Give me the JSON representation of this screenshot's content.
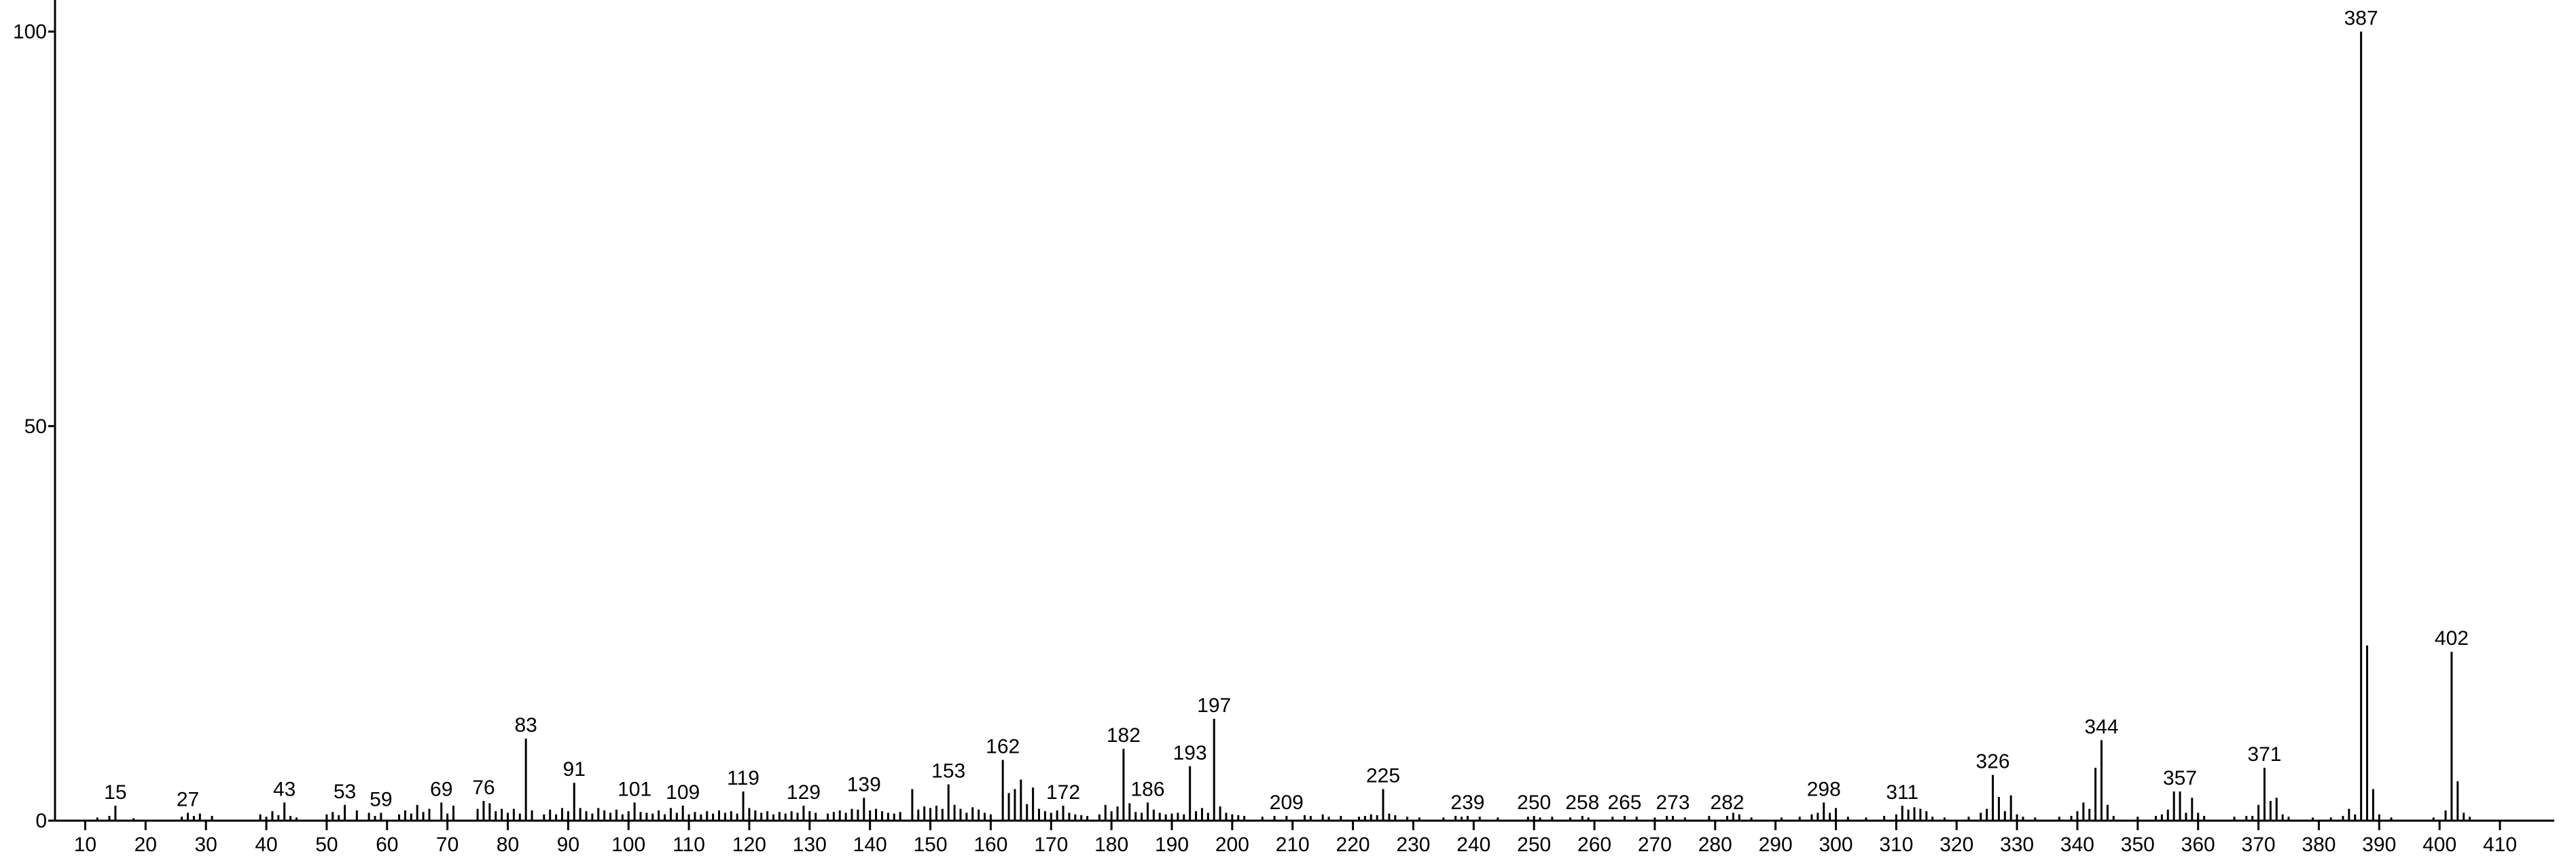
{
  "chart_data": {
    "type": "stem",
    "xlim": [
      5,
      419
    ],
    "ylim": [
      0,
      104
    ],
    "xticks": [
      10,
      20,
      30,
      40,
      50,
      60,
      70,
      80,
      90,
      100,
      110,
      120,
      130,
      140,
      150,
      160,
      170,
      180,
      190,
      200,
      210,
      220,
      230,
      240,
      250,
      260,
      270,
      280,
      290,
      300,
      310,
      320,
      330,
      340,
      350,
      360,
      370,
      380,
      390,
      400,
      410
    ],
    "yticks": [
      0,
      50,
      100
    ],
    "color": "#000000",
    "points": [
      {
        "x": 12,
        "y": 0.4
      },
      {
        "x": 14,
        "y": 0.6
      },
      {
        "x": 15,
        "y": 1.9,
        "labeled": true
      },
      {
        "x": 18,
        "y": 0.3
      },
      {
        "x": 26,
        "y": 0.5
      },
      {
        "x": 27,
        "y": 1.0,
        "labeled": true
      },
      {
        "x": 28,
        "y": 0.6
      },
      {
        "x": 29,
        "y": 0.9
      },
      {
        "x": 31,
        "y": 0.6
      },
      {
        "x": 39,
        "y": 0.8
      },
      {
        "x": 40,
        "y": 0.5
      },
      {
        "x": 41,
        "y": 1.2
      },
      {
        "x": 42,
        "y": 0.7
      },
      {
        "x": 43,
        "y": 2.3,
        "labeled": true
      },
      {
        "x": 44,
        "y": 0.6
      },
      {
        "x": 45,
        "y": 0.4
      },
      {
        "x": 50,
        "y": 0.8
      },
      {
        "x": 51,
        "y": 1.1
      },
      {
        "x": 52,
        "y": 0.7
      },
      {
        "x": 53,
        "y": 2.0,
        "labeled": true
      },
      {
        "x": 55,
        "y": 1.3
      },
      {
        "x": 57,
        "y": 1.0
      },
      {
        "x": 58,
        "y": 0.6
      },
      {
        "x": 59,
        "y": 1.0,
        "labeled": true
      },
      {
        "x": 62,
        "y": 0.8
      },
      {
        "x": 63,
        "y": 1.3
      },
      {
        "x": 64,
        "y": 0.9
      },
      {
        "x": 65,
        "y": 2.0
      },
      {
        "x": 66,
        "y": 1.1
      },
      {
        "x": 67,
        "y": 1.5
      },
      {
        "x": 69,
        "y": 2.3,
        "labeled": true
      },
      {
        "x": 70,
        "y": 0.9
      },
      {
        "x": 71,
        "y": 1.9
      },
      {
        "x": 75,
        "y": 1.5
      },
      {
        "x": 76,
        "y": 2.5,
        "labeled": true
      },
      {
        "x": 77,
        "y": 2.2
      },
      {
        "x": 78,
        "y": 1.2
      },
      {
        "x": 79,
        "y": 1.5
      },
      {
        "x": 80,
        "y": 1.0
      },
      {
        "x": 81,
        "y": 1.5
      },
      {
        "x": 82,
        "y": 0.9
      },
      {
        "x": 83,
        "y": 10.4,
        "labeled": true
      },
      {
        "x": 84,
        "y": 1.3
      },
      {
        "x": 86,
        "y": 0.8
      },
      {
        "x": 87,
        "y": 1.4
      },
      {
        "x": 88,
        "y": 0.8
      },
      {
        "x": 89,
        "y": 1.6
      },
      {
        "x": 90,
        "y": 1.2
      },
      {
        "x": 91,
        "y": 4.8,
        "labeled": true
      },
      {
        "x": 92,
        "y": 1.6
      },
      {
        "x": 93,
        "y": 1.2
      },
      {
        "x": 94,
        "y": 0.9
      },
      {
        "x": 95,
        "y": 1.6
      },
      {
        "x": 96,
        "y": 1.3
      },
      {
        "x": 97,
        "y": 1.0
      },
      {
        "x": 98,
        "y": 1.4
      },
      {
        "x": 99,
        "y": 0.8
      },
      {
        "x": 100,
        "y": 1.2
      },
      {
        "x": 101,
        "y": 2.3,
        "labeled": true
      },
      {
        "x": 102,
        "y": 1.1
      },
      {
        "x": 103,
        "y": 1.0
      },
      {
        "x": 104,
        "y": 0.9
      },
      {
        "x": 105,
        "y": 1.3
      },
      {
        "x": 106,
        "y": 0.8
      },
      {
        "x": 107,
        "y": 1.6
      },
      {
        "x": 108,
        "y": 1.0
      },
      {
        "x": 109,
        "y": 1.9,
        "labeled": true
      },
      {
        "x": 110,
        "y": 0.8
      },
      {
        "x": 111,
        "y": 1.1
      },
      {
        "x": 112,
        "y": 0.8
      },
      {
        "x": 113,
        "y": 1.2
      },
      {
        "x": 114,
        "y": 0.9
      },
      {
        "x": 115,
        "y": 1.3
      },
      {
        "x": 116,
        "y": 1.0
      },
      {
        "x": 117,
        "y": 1.2
      },
      {
        "x": 118,
        "y": 0.9
      },
      {
        "x": 119,
        "y": 3.7,
        "labeled": true
      },
      {
        "x": 120,
        "y": 1.6
      },
      {
        "x": 121,
        "y": 1.3
      },
      {
        "x": 122,
        "y": 1.0
      },
      {
        "x": 123,
        "y": 1.2
      },
      {
        "x": 124,
        "y": 0.8
      },
      {
        "x": 125,
        "y": 1.1
      },
      {
        "x": 126,
        "y": 0.9
      },
      {
        "x": 127,
        "y": 1.2
      },
      {
        "x": 128,
        "y": 1.0
      },
      {
        "x": 129,
        "y": 1.9,
        "labeled": true
      },
      {
        "x": 130,
        "y": 1.2
      },
      {
        "x": 131,
        "y": 1.0
      },
      {
        "x": 133,
        "y": 0.9
      },
      {
        "x": 134,
        "y": 1.1
      },
      {
        "x": 135,
        "y": 1.3
      },
      {
        "x": 136,
        "y": 1.0
      },
      {
        "x": 137,
        "y": 1.5
      },
      {
        "x": 138,
        "y": 1.4
      },
      {
        "x": 139,
        "y": 2.9,
        "labeled": true
      },
      {
        "x": 140,
        "y": 1.3
      },
      {
        "x": 141,
        "y": 1.5
      },
      {
        "x": 142,
        "y": 1.2
      },
      {
        "x": 143,
        "y": 1.0
      },
      {
        "x": 144,
        "y": 0.9
      },
      {
        "x": 145,
        "y": 1.1
      },
      {
        "x": 147,
        "y": 4.0
      },
      {
        "x": 148,
        "y": 1.4
      },
      {
        "x": 149,
        "y": 1.8
      },
      {
        "x": 150,
        "y": 1.6
      },
      {
        "x": 151,
        "y": 1.9
      },
      {
        "x": 152,
        "y": 1.5
      },
      {
        "x": 153,
        "y": 4.6,
        "labeled": true
      },
      {
        "x": 154,
        "y": 2.0
      },
      {
        "x": 155,
        "y": 1.5
      },
      {
        "x": 156,
        "y": 1.0
      },
      {
        "x": 157,
        "y": 1.7
      },
      {
        "x": 158,
        "y": 1.4
      },
      {
        "x": 159,
        "y": 1.0
      },
      {
        "x": 160,
        "y": 0.8
      },
      {
        "x": 162,
        "y": 7.7,
        "labeled": true
      },
      {
        "x": 163,
        "y": 3.5
      },
      {
        "x": 164,
        "y": 4.0
      },
      {
        "x": 165,
        "y": 5.2
      },
      {
        "x": 166,
        "y": 2.1
      },
      {
        "x": 167,
        "y": 4.2
      },
      {
        "x": 168,
        "y": 1.5
      },
      {
        "x": 169,
        "y": 1.2
      },
      {
        "x": 170,
        "y": 1.0
      },
      {
        "x": 171,
        "y": 1.3
      },
      {
        "x": 172,
        "y": 1.9,
        "labeled": true
      },
      {
        "x": 173,
        "y": 1.0
      },
      {
        "x": 174,
        "y": 0.8
      },
      {
        "x": 175,
        "y": 0.7
      },
      {
        "x": 176,
        "y": 0.6
      },
      {
        "x": 178,
        "y": 0.8
      },
      {
        "x": 179,
        "y": 2.0
      },
      {
        "x": 180,
        "y": 1.2
      },
      {
        "x": 181,
        "y": 1.8
      },
      {
        "x": 182,
        "y": 9.1,
        "labeled": true
      },
      {
        "x": 183,
        "y": 2.2
      },
      {
        "x": 184,
        "y": 1.1
      },
      {
        "x": 185,
        "y": 1.0
      },
      {
        "x": 186,
        "y": 2.3,
        "labeled": true
      },
      {
        "x": 187,
        "y": 1.4
      },
      {
        "x": 188,
        "y": 1.0
      },
      {
        "x": 189,
        "y": 0.8
      },
      {
        "x": 190,
        "y": 0.9
      },
      {
        "x": 191,
        "y": 1.0
      },
      {
        "x": 192,
        "y": 0.8
      },
      {
        "x": 193,
        "y": 6.9,
        "labeled": true
      },
      {
        "x": 194,
        "y": 1.2
      },
      {
        "x": 195,
        "y": 1.6
      },
      {
        "x": 196,
        "y": 1.0
      },
      {
        "x": 197,
        "y": 12.9,
        "labeled": true
      },
      {
        "x": 198,
        "y": 1.8
      },
      {
        "x": 199,
        "y": 1.0
      },
      {
        "x": 200,
        "y": 0.8
      },
      {
        "x": 201,
        "y": 0.7
      },
      {
        "x": 202,
        "y": 0.6
      },
      {
        "x": 205,
        "y": 0.5
      },
      {
        "x": 207,
        "y": 0.6
      },
      {
        "x": 209,
        "y": 0.6,
        "labeled": true
      },
      {
        "x": 212,
        "y": 0.7
      },
      {
        "x": 213,
        "y": 0.6
      },
      {
        "x": 215,
        "y": 0.8
      },
      {
        "x": 216,
        "y": 0.5
      },
      {
        "x": 218,
        "y": 0.6
      },
      {
        "x": 221,
        "y": 0.5
      },
      {
        "x": 222,
        "y": 0.6
      },
      {
        "x": 223,
        "y": 0.8
      },
      {
        "x": 224,
        "y": 0.7
      },
      {
        "x": 225,
        "y": 4.0,
        "labeled": true
      },
      {
        "x": 226,
        "y": 0.9
      },
      {
        "x": 227,
        "y": 0.7
      },
      {
        "x": 229,
        "y": 0.5
      },
      {
        "x": 231,
        "y": 0.4
      },
      {
        "x": 235,
        "y": 0.4
      },
      {
        "x": 237,
        "y": 0.6
      },
      {
        "x": 238,
        "y": 0.5
      },
      {
        "x": 239,
        "y": 0.6,
        "labeled": true
      },
      {
        "x": 241,
        "y": 0.5
      },
      {
        "x": 244,
        "y": 0.4
      },
      {
        "x": 249,
        "y": 0.5
      },
      {
        "x": 250,
        "y": 0.6,
        "labeled": true
      },
      {
        "x": 251,
        "y": 0.4
      },
      {
        "x": 253,
        "y": 0.5
      },
      {
        "x": 256,
        "y": 0.4
      },
      {
        "x": 258,
        "y": 0.6,
        "labeled": true
      },
      {
        "x": 259,
        "y": 0.4
      },
      {
        "x": 263,
        "y": 0.5
      },
      {
        "x": 265,
        "y": 0.6,
        "labeled": true
      },
      {
        "x": 267,
        "y": 0.5
      },
      {
        "x": 270,
        "y": 0.4
      },
      {
        "x": 272,
        "y": 0.6
      },
      {
        "x": 273,
        "y": 0.6,
        "labeled": true
      },
      {
        "x": 275,
        "y": 0.4
      },
      {
        "x": 279,
        "y": 0.6
      },
      {
        "x": 282,
        "y": 0.6,
        "labeled": true
      },
      {
        "x": 283,
        "y": 1.0
      },
      {
        "x": 284,
        "y": 0.8
      },
      {
        "x": 286,
        "y": 0.4
      },
      {
        "x": 291,
        "y": 0.4
      },
      {
        "x": 294,
        "y": 0.5
      },
      {
        "x": 296,
        "y": 0.8
      },
      {
        "x": 297,
        "y": 1.0
      },
      {
        "x": 298,
        "y": 2.3,
        "labeled": true
      },
      {
        "x": 299,
        "y": 1.0
      },
      {
        "x": 300,
        "y": 1.6
      },
      {
        "x": 302,
        "y": 0.5
      },
      {
        "x": 305,
        "y": 0.4
      },
      {
        "x": 308,
        "y": 0.6
      },
      {
        "x": 310,
        "y": 0.8
      },
      {
        "x": 311,
        "y": 1.9,
        "labeled": true
      },
      {
        "x": 312,
        "y": 1.4
      },
      {
        "x": 313,
        "y": 1.7
      },
      {
        "x": 314,
        "y": 1.5
      },
      {
        "x": 315,
        "y": 1.2
      },
      {
        "x": 316,
        "y": 0.5
      },
      {
        "x": 318,
        "y": 0.4
      },
      {
        "x": 322,
        "y": 0.5
      },
      {
        "x": 324,
        "y": 1.0
      },
      {
        "x": 325,
        "y": 1.5
      },
      {
        "x": 326,
        "y": 5.8,
        "labeled": true
      },
      {
        "x": 327,
        "y": 3.0
      },
      {
        "x": 328,
        "y": 1.2
      },
      {
        "x": 329,
        "y": 3.2
      },
      {
        "x": 330,
        "y": 0.8
      },
      {
        "x": 331,
        "y": 0.5
      },
      {
        "x": 333,
        "y": 0.4
      },
      {
        "x": 337,
        "y": 0.5
      },
      {
        "x": 339,
        "y": 0.6
      },
      {
        "x": 340,
        "y": 1.2
      },
      {
        "x": 341,
        "y": 2.3
      },
      {
        "x": 342,
        "y": 1.5
      },
      {
        "x": 343,
        "y": 6.7
      },
      {
        "x": 344,
        "y": 10.2,
        "labeled": true
      },
      {
        "x": 345,
        "y": 2.0
      },
      {
        "x": 346,
        "y": 0.6
      },
      {
        "x": 350,
        "y": 0.5
      },
      {
        "x": 353,
        "y": 0.6
      },
      {
        "x": 354,
        "y": 0.8
      },
      {
        "x": 355,
        "y": 1.4
      },
      {
        "x": 356,
        "y": 3.7
      },
      {
        "x": 357,
        "y": 3.7,
        "labeled": true
      },
      {
        "x": 358,
        "y": 1.0
      },
      {
        "x": 359,
        "y": 2.9
      },
      {
        "x": 360,
        "y": 1.0
      },
      {
        "x": 361,
        "y": 0.6
      },
      {
        "x": 366,
        "y": 0.5
      },
      {
        "x": 368,
        "y": 0.6
      },
      {
        "x": 369,
        "y": 0.6
      },
      {
        "x": 370,
        "y": 2.0
      },
      {
        "x": 371,
        "y": 6.7,
        "labeled": true
      },
      {
        "x": 372,
        "y": 2.5
      },
      {
        "x": 373,
        "y": 2.9
      },
      {
        "x": 374,
        "y": 0.8
      },
      {
        "x": 375,
        "y": 0.5
      },
      {
        "x": 379,
        "y": 0.4
      },
      {
        "x": 382,
        "y": 0.4
      },
      {
        "x": 384,
        "y": 0.6
      },
      {
        "x": 385,
        "y": 1.5
      },
      {
        "x": 386,
        "y": 0.8
      },
      {
        "x": 387,
        "y": 100,
        "labeled": true
      },
      {
        "x": 388,
        "y": 22.2
      },
      {
        "x": 389,
        "y": 4.0
      },
      {
        "x": 390,
        "y": 0.8
      },
      {
        "x": 392,
        "y": 0.4
      },
      {
        "x": 399,
        "y": 0.4
      },
      {
        "x": 401,
        "y": 1.3
      },
      {
        "x": 402,
        "y": 21.4,
        "labeled": true
      },
      {
        "x": 403,
        "y": 5.0
      },
      {
        "x": 404,
        "y": 1.0
      },
      {
        "x": 405,
        "y": 0.5
      }
    ]
  }
}
